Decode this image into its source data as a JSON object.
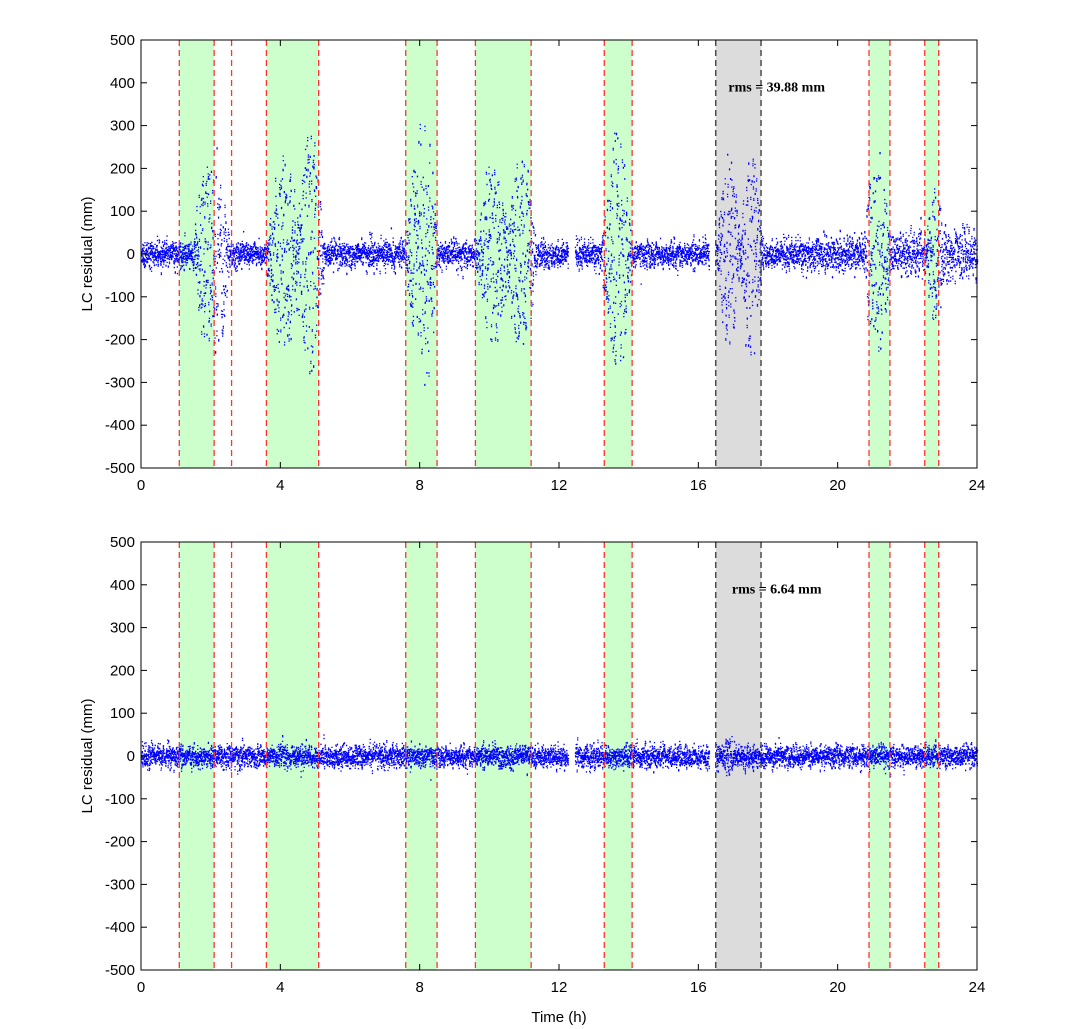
{
  "chart_data": [
    {
      "type": "scatter",
      "xlabel": "",
      "ylabel": "LC residual (mm)",
      "xlim": [
        0,
        24
      ],
      "ylim": [
        -500,
        500
      ],
      "xticks": [
        0,
        4,
        8,
        12,
        16,
        20,
        24
      ],
      "yticks": [
        -500,
        -400,
        -300,
        -200,
        -100,
        0,
        100,
        200,
        300,
        400,
        500
      ],
      "annotation": "rms = 39.88 mm",
      "grid": false,
      "series_color": "#0000ff",
      "bursts": [
        {
          "center": 1.9,
          "width": 0.45,
          "amp": 200
        },
        {
          "center": 2.25,
          "width": 0.3,
          "amp": 190
        },
        {
          "center": 4.1,
          "width": 0.55,
          "amp": 210
        },
        {
          "center": 4.85,
          "width": 0.4,
          "amp": 280
        },
        {
          "center": 7.9,
          "width": 0.35,
          "amp": 200
        },
        {
          "center": 8.2,
          "width": 0.3,
          "amp": 280
        },
        {
          "center": 10.1,
          "width": 0.5,
          "amp": 200
        },
        {
          "center": 10.9,
          "width": 0.45,
          "amp": 230
        },
        {
          "center": 13.65,
          "width": 0.45,
          "amp": 280
        },
        {
          "center": 16.85,
          "width": 0.35,
          "amp": 220
        },
        {
          "center": 17.5,
          "width": 0.35,
          "amp": 230
        },
        {
          "center": 21.1,
          "width": 0.4,
          "amp": 220
        },
        {
          "center": 22.8,
          "width": 0.3,
          "amp": 130
        }
      ],
      "noise_base": 15
    },
    {
      "type": "scatter",
      "xlabel": "Time (h)",
      "ylabel": "LC residual (mm)",
      "xlim": [
        0,
        24
      ],
      "ylim": [
        -500,
        500
      ],
      "xticks": [
        0,
        4,
        8,
        12,
        16,
        20,
        24
      ],
      "yticks": [
        -500,
        -400,
        -300,
        -200,
        -100,
        0,
        100,
        200,
        300,
        400,
        500
      ],
      "annotation": "rms = 6.64 mm",
      "grid": false,
      "series_color": "#0000ff",
      "bursts": [
        {
          "center": 16.85,
          "width": 0.2,
          "amp": 40
        }
      ],
      "noise_base": 12
    }
  ],
  "highlight_bands": [
    {
      "from": 1.1,
      "to": 2.1,
      "color": "#ccffcc",
      "line": "#ff3333"
    },
    {
      "from": 3.6,
      "to": 5.1,
      "color": "#ccffcc",
      "line": "#ff3333"
    },
    {
      "from": 7.6,
      "to": 8.5,
      "color": "#ccffcc",
      "line": "#ff3333"
    },
    {
      "from": 9.6,
      "to": 11.2,
      "color": "#ccffcc",
      "line": "#ff3333"
    },
    {
      "from": 13.3,
      "to": 14.1,
      "color": "#ccffcc",
      "line": "#ff3333"
    },
    {
      "from": 16.5,
      "to": 17.8,
      "color": "#dcdcdc",
      "line": "#333333"
    },
    {
      "from": 20.9,
      "to": 21.5,
      "color": "#ccffcc",
      "line": "#ff3333"
    },
    {
      "from": 22.5,
      "to": 22.9,
      "color": "#ccffcc",
      "line": "#ff3333"
    }
  ],
  "extra_red_lines": [
    2.6
  ],
  "data_gaps": [
    {
      "from": 12.25,
      "to": 12.45
    },
    {
      "from": 16.3,
      "to": 16.5
    }
  ]
}
